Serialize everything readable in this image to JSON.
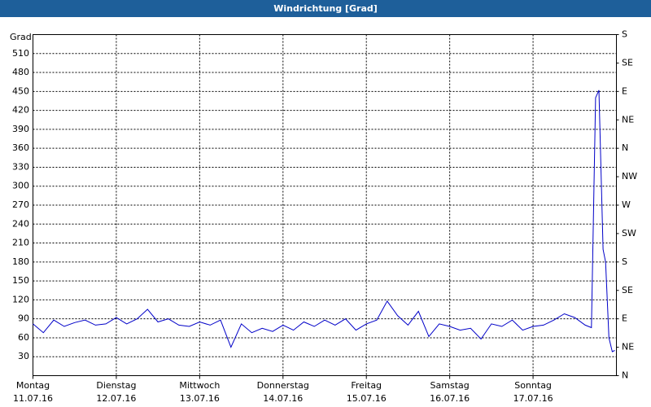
{
  "chart_data": {
    "type": "line",
    "title": "Windrichtung [Grad]",
    "y_label": "Grad",
    "x": [
      0,
      0.125,
      0.25,
      0.375,
      0.5,
      0.625,
      0.75,
      0.875,
      1,
      1.125,
      1.25,
      1.375,
      1.5,
      1.625,
      1.75,
      1.875,
      2,
      2.125,
      2.25,
      2.375,
      2.5,
      2.625,
      2.75,
      2.875,
      3,
      3.125,
      3.25,
      3.375,
      3.5,
      3.625,
      3.75,
      3.875,
      4,
      4.125,
      4.25,
      4.375,
      4.5,
      4.625,
      4.75,
      4.875,
      5,
      5.125,
      5.25,
      5.375,
      5.5,
      5.625,
      5.75,
      5.875,
      6,
      6.125,
      6.25,
      6.375,
      6.5,
      6.625,
      6.7,
      6.75,
      6.79,
      6.84,
      6.87,
      6.91,
      6.95,
      6.98
    ],
    "series": [
      {
        "name": "Windrichtung",
        "color": "#0000c8",
        "values": [
          82,
          68,
          88,
          78,
          84,
          88,
          80,
          82,
          92,
          82,
          90,
          105,
          85,
          90,
          80,
          78,
          85,
          80,
          88,
          45,
          82,
          68,
          75,
          70,
          80,
          72,
          85,
          78,
          88,
          80,
          90,
          72,
          82,
          88,
          118,
          95,
          80,
          102,
          62,
          82,
          78,
          72,
          75,
          58,
          82,
          78,
          88,
          72,
          78,
          80,
          88,
          98,
          92,
          80,
          76,
          440,
          452,
          200,
          180,
          60,
          38,
          40
        ]
      }
    ],
    "xlim": [
      0,
      7
    ],
    "xticks": [
      {
        "value": 0,
        "label": [
          "Montag",
          "11.07.16"
        ]
      },
      {
        "value": 1,
        "label": [
          "Dienstag",
          "12.07.16"
        ]
      },
      {
        "value": 2,
        "label": [
          "Mittwoch",
          "13.07.16"
        ]
      },
      {
        "value": 3,
        "label": [
          "Donnerstag",
          "14.07.16"
        ]
      },
      {
        "value": 4,
        "label": [
          "Freitag",
          "15.07.16"
        ]
      },
      {
        "value": 5,
        "label": [
          "Samstag",
          "16.07.16"
        ]
      },
      {
        "value": 6,
        "label": [
          "Sonntag",
          "17.07.16"
        ]
      }
    ],
    "ylim": [
      0,
      540
    ],
    "yticks": [
      30,
      60,
      90,
      120,
      150,
      180,
      210,
      240,
      270,
      300,
      330,
      360,
      390,
      420,
      450,
      480,
      510
    ],
    "y2lim": [
      0,
      540
    ],
    "y2ticks": [
      {
        "value": 0,
        "label": "N"
      },
      {
        "value": 45,
        "label": "NE"
      },
      {
        "value": 90,
        "label": "E"
      },
      {
        "value": 135,
        "label": "SE"
      },
      {
        "value": 180,
        "label": "S"
      },
      {
        "value": 225,
        "label": "SW"
      },
      {
        "value": 270,
        "label": "W"
      },
      {
        "value": 315,
        "label": "NW"
      },
      {
        "value": 360,
        "label": "N"
      },
      {
        "value": 405,
        "label": "NE"
      },
      {
        "value": 450,
        "label": "E"
      },
      {
        "value": 495,
        "label": "SE"
      },
      {
        "value": 540,
        "label": "S"
      }
    ],
    "grid": true
  }
}
